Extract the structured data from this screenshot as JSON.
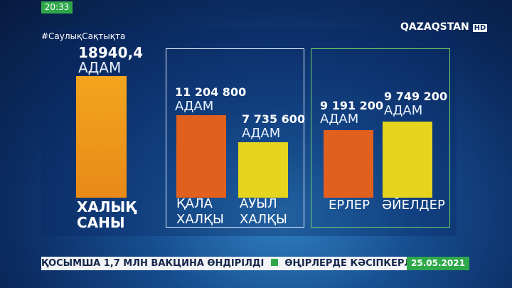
{
  "clock": "20:33",
  "hashtag": "#СаулықСақтықта",
  "logo": {
    "name": "QAZAQSTAN",
    "badge": "HD"
  },
  "bars": [
    {
      "value": "18940,4",
      "unit": "АДАМ",
      "label": [
        "ХАЛЫҚ",
        "САНЫ"
      ]
    },
    {
      "value": "11 204 800",
      "unit": "АДАМ",
      "label": [
        "ҚАЛА",
        "ХАЛҚЫ"
      ]
    },
    {
      "value": "7 735 600",
      "unit": "АДАМ",
      "label": [
        "АУЫЛ",
        "ХАЛҚЫ"
      ]
    },
    {
      "value": "9 191 200",
      "unit": "АДАМ",
      "label": [
        "ЕРЛЕР"
      ]
    },
    {
      "value": "9 749 200",
      "unit": "АДАМ",
      "label": [
        "ӘЙЕЛДЕР"
      ]
    }
  ],
  "ticker": {
    "items": [
      "ҚОСЫМША 1,7 МЛН ВАКЦИНА ӨНДІРІЛДІ",
      "ӨҢІРЛЕРДЕ КӘСІПКЕРЛІКТІ ДА"
    ],
    "date": "25.05.2021"
  }
}
